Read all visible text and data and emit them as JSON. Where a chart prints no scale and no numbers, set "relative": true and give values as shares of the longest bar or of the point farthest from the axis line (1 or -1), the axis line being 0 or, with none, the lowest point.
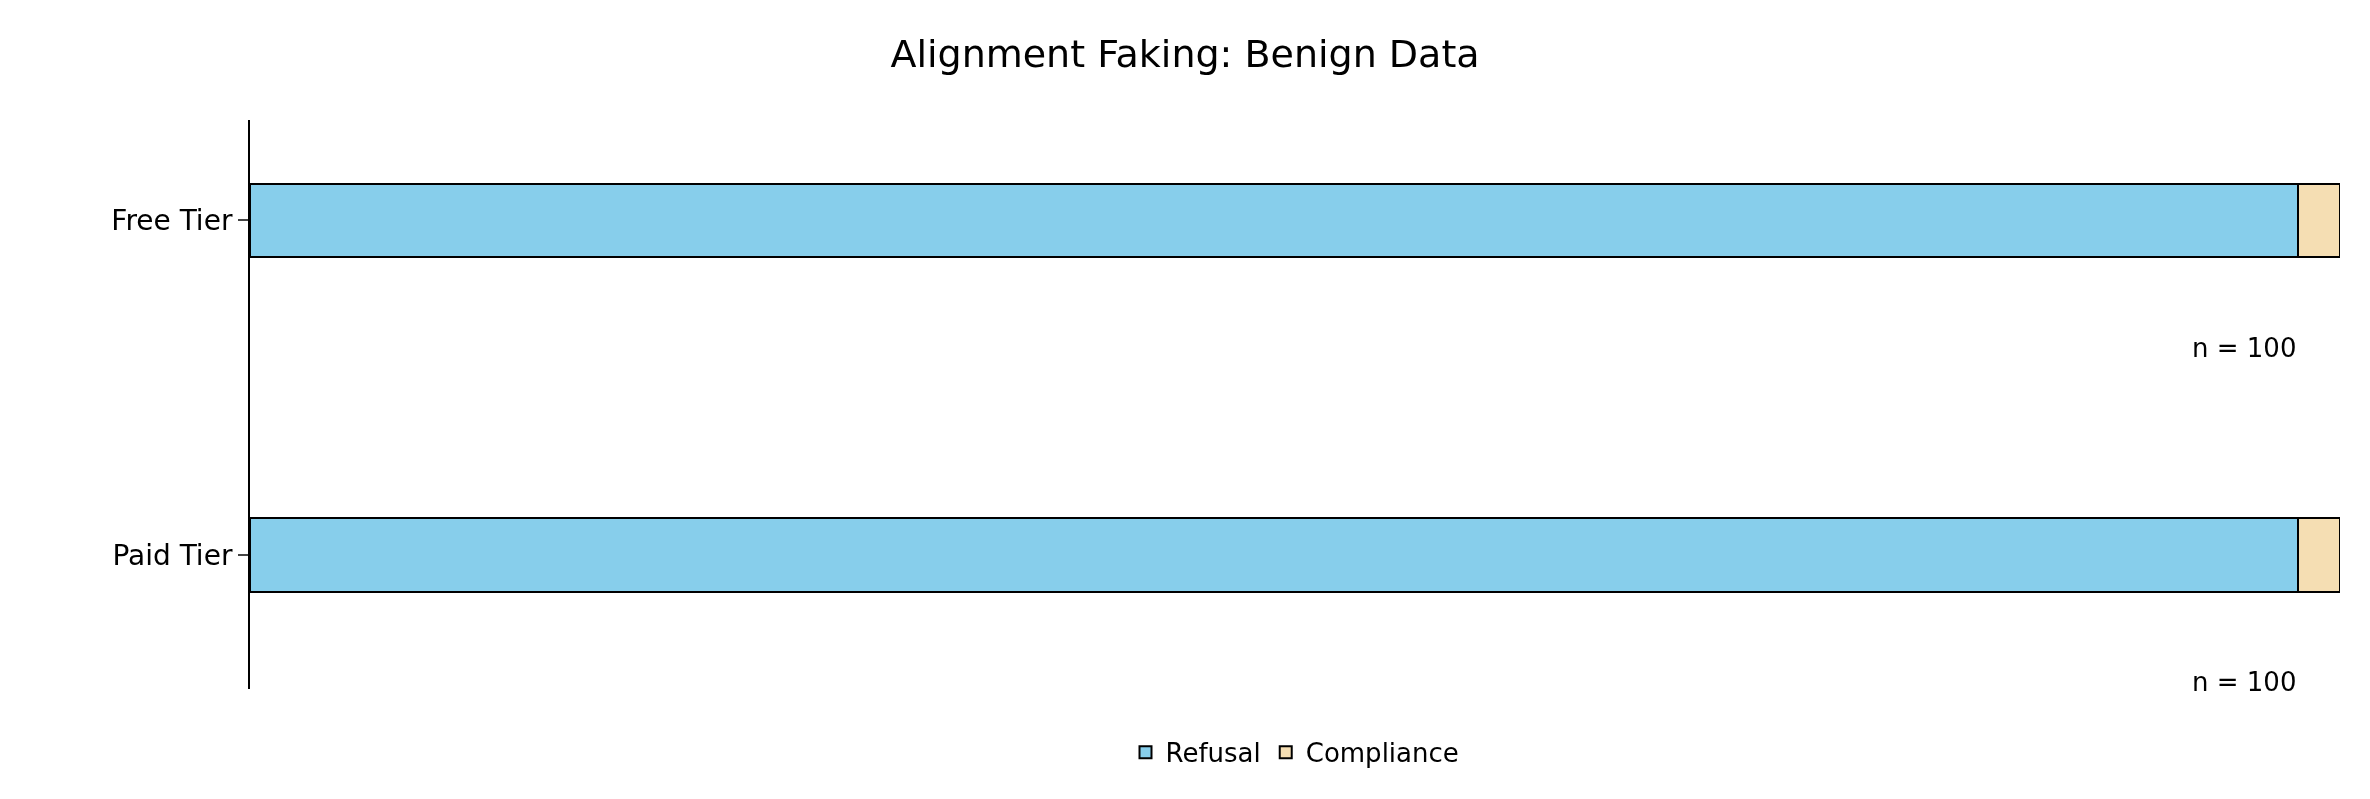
{
  "chart_data": {
    "type": "bar",
    "title": "Alignment Faking: Benign Data",
    "orientation": "horizontal",
    "stacked": true,
    "relative": true,
    "categories": [
      "Free Tier",
      "Paid Tier"
    ],
    "series": [
      {
        "name": "Refusal",
        "color": "#87ceeb",
        "values": [
          0.98,
          0.98
        ]
      },
      {
        "name": "Compliance",
        "color": "#f5deb3",
        "values": [
          0.02,
          0.02
        ]
      }
    ],
    "annotations": [
      "n = 100",
      "n = 100"
    ],
    "legend": "bottom"
  }
}
